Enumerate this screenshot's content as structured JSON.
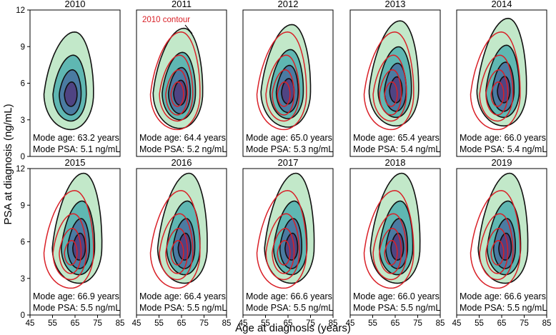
{
  "chart_data": {
    "type": "contour",
    "xlabel": "Age at diagnosis (years)",
    "ylabel": "PSA at diagnosis (ng/mL)",
    "xlim": [
      45,
      85
    ],
    "ylim": [
      0,
      12
    ],
    "x_ticks": [
      "45",
      "55",
      "65",
      "75",
      "85"
    ],
    "y_ticks": [
      "0",
      "3",
      "6",
      "9",
      "12"
    ],
    "mode_age_prefix": "Mode age: ",
    "mode_psa_prefix": "Mode PSA: ",
    "annotation": "2010 contour",
    "colors": {
      "outer": "#c2e8c9",
      "mid": "#5fb7b2",
      "inner": "#4a7ba2",
      "core": "#4f4483",
      "reference": "#d92027",
      "line": "#111111"
    },
    "panels": [
      {
        "year": "2010",
        "mode_age_text": "63.2 years",
        "mode_psa_text": "5.1 ng/mL",
        "mode_age": 63.2,
        "mode_psa": 5.1,
        "show_reference": false
      },
      {
        "year": "2011",
        "mode_age_text": "64.4 years",
        "mode_psa_text": "5.2 ng/mL",
        "mode_age": 64.4,
        "mode_psa": 5.2,
        "show_reference": true
      },
      {
        "year": "2012",
        "mode_age_text": "65.0 years",
        "mode_psa_text": "5.3 ng/mL",
        "mode_age": 65.0,
        "mode_psa": 5.3,
        "show_reference": true
      },
      {
        "year": "2013",
        "mode_age_text": "65.4 years",
        "mode_psa_text": "5.4 ng/mL",
        "mode_age": 65.4,
        "mode_psa": 5.4,
        "show_reference": true
      },
      {
        "year": "2014",
        "mode_age_text": "66.0 years",
        "mode_psa_text": "5.4 ng/mL",
        "mode_age": 66.0,
        "mode_psa": 5.4,
        "show_reference": true
      },
      {
        "year": "2015",
        "mode_age_text": "66.9 years",
        "mode_psa_text": "5.5 ng/mL",
        "mode_age": 66.9,
        "mode_psa": 5.5,
        "show_reference": true
      },
      {
        "year": "2016",
        "mode_age_text": "66.4 years",
        "mode_psa_text": "5.5 ng/mL",
        "mode_age": 66.4,
        "mode_psa": 5.5,
        "show_reference": true
      },
      {
        "year": "2017",
        "mode_age_text": "66.6 years",
        "mode_psa_text": "5.5 ng/mL",
        "mode_age": 66.6,
        "mode_psa": 5.5,
        "show_reference": true
      },
      {
        "year": "2018",
        "mode_age_text": "66.0 years",
        "mode_psa_text": "5.5 ng/mL",
        "mode_age": 66.0,
        "mode_psa": 5.5,
        "show_reference": true
      },
      {
        "year": "2019",
        "mode_age_text": "66.6 years",
        "mode_psa_text": "5.5 ng/mL",
        "mode_age": 66.6,
        "mode_psa": 5.5,
        "show_reference": true
      }
    ]
  }
}
